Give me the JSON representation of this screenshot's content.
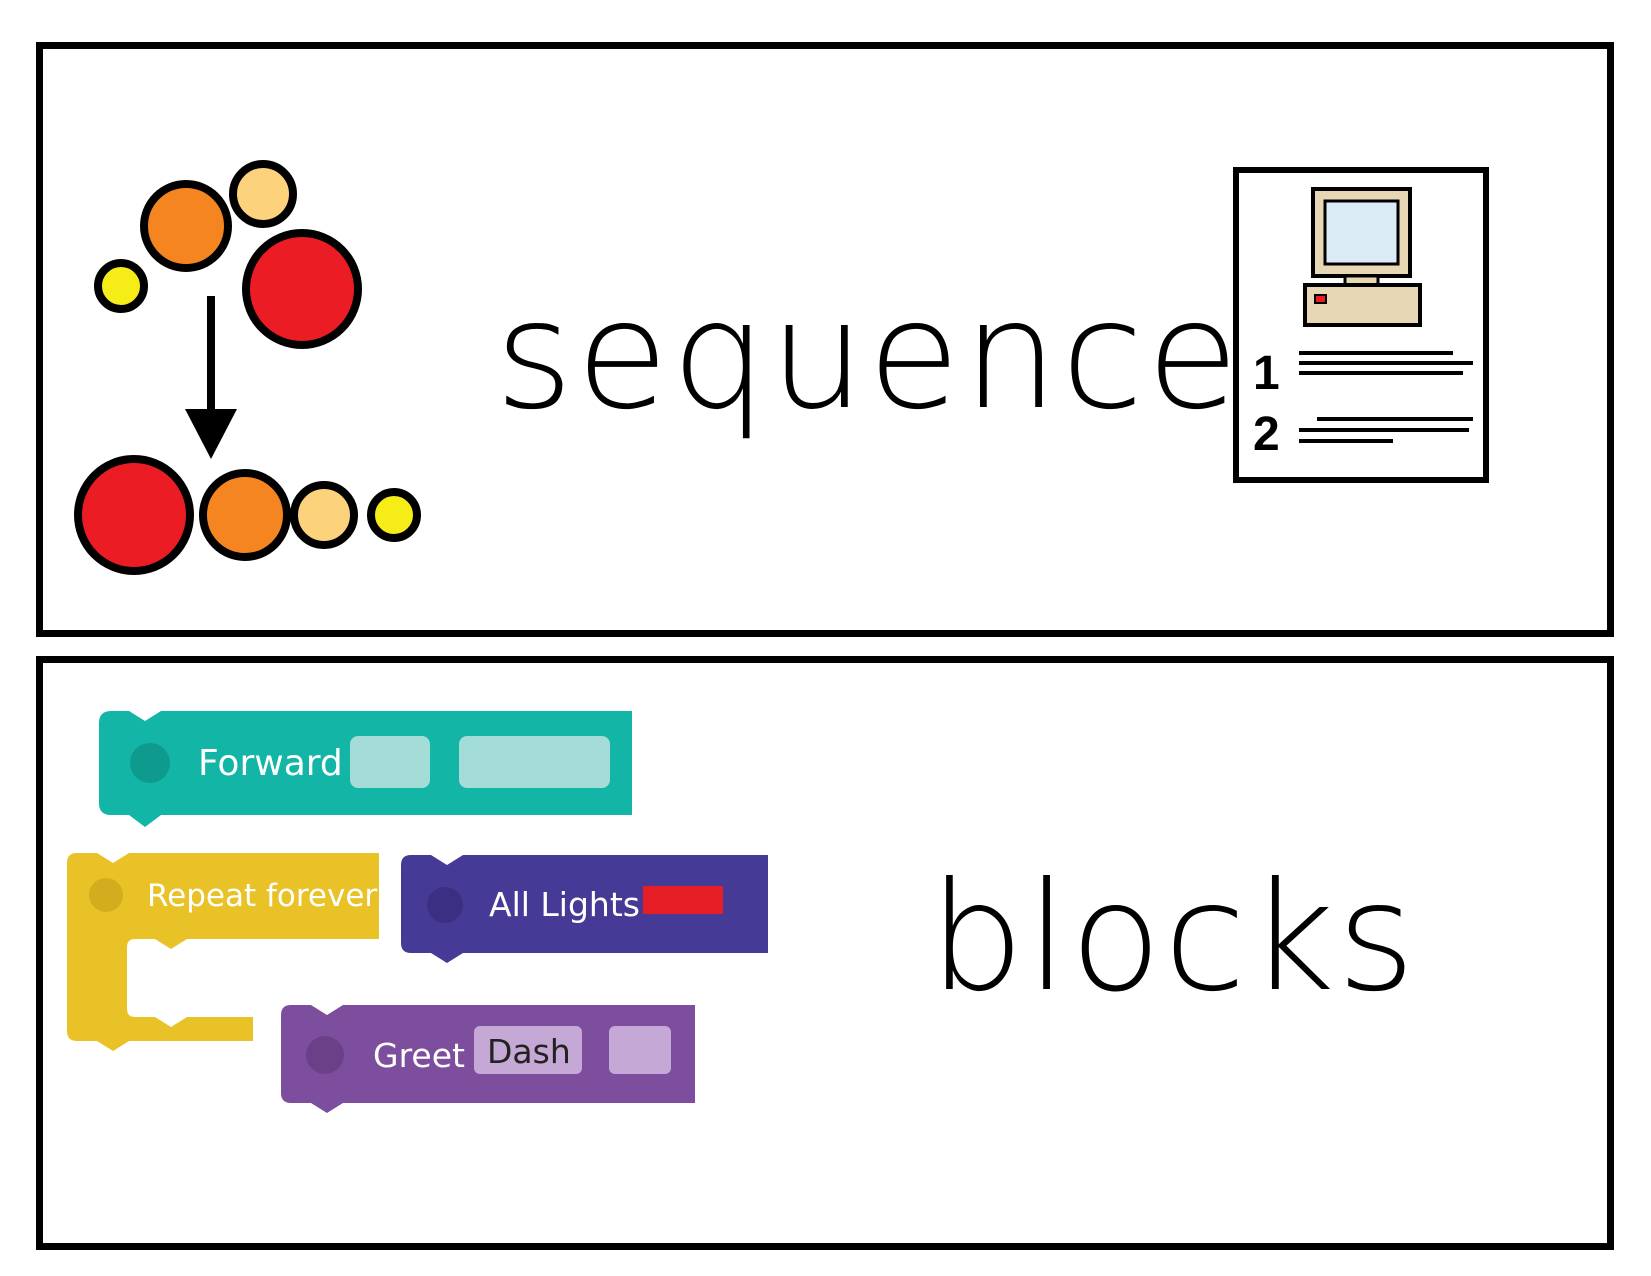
{
  "cards": {
    "sequence": {
      "word": "sequence",
      "pictogram_icon": "sequence-dots-arrow-icon",
      "computer_icon": "computer-numbered-list-icon",
      "list_numbers": [
        "1",
        "2"
      ]
    },
    "blocks": {
      "word": "blocks",
      "blocks": {
        "forward": {
          "label": "Forward",
          "color": "#12b5a6"
        },
        "repeat": {
          "label": "Repeat forever",
          "color": "#e8c226"
        },
        "lights": {
          "label": "All Lights",
          "color": "#463a97",
          "swatch_color": "#e61d25"
        },
        "greet": {
          "label": "Greet",
          "field": "Dash",
          "color": "#7d4e9e"
        }
      }
    }
  },
  "colors": {
    "red": "#ec1c24",
    "orange": "#f58520",
    "light_orange": "#fcd37c",
    "yellow": "#f6ec18",
    "border": "#000000"
  }
}
